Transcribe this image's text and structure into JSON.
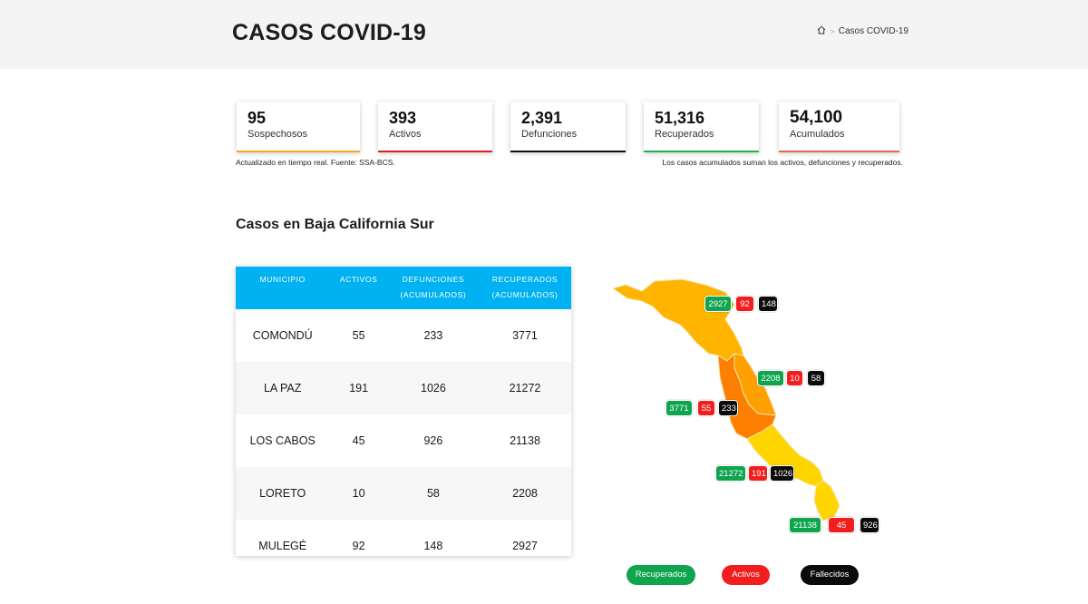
{
  "header": {
    "title": "CASOS COVID-19",
    "breadcrumb_home_icon": "home-icon",
    "breadcrumb_separator": ">",
    "breadcrumb_current": "Casos COVID-19"
  },
  "cards": [
    {
      "value": "95",
      "label": "Sospechosos",
      "color": "#f5a623"
    },
    {
      "value": "393",
      "label": "Activos",
      "color": "#e02020"
    },
    {
      "value": "2,391",
      "label": "Defunciones",
      "color": "#111111"
    },
    {
      "value": "51,316",
      "label": "Recuperados",
      "color": "#21b24b"
    },
    {
      "value": "54,100",
      "label": "Acumulados",
      "color": "#e8664a"
    }
  ],
  "notes": {
    "left": "Actualizado en tiempo real. Fuente: SSA-BCS.",
    "right": "Los casos acumulados suman los activos, defunciones y recuperados."
  },
  "section_title": "Casos en Baja California Sur",
  "table": {
    "header_color": "#00b2f2",
    "headers": [
      "MUNICIPIO",
      "ACTIVOS",
      "DEFUNCIONES (ACUMULADOS)",
      "RECUPERADOS (ACUMULADOS)"
    ],
    "rows": [
      [
        "COMONDÚ",
        "55",
        "233",
        "3771"
      ],
      [
        "LA PAZ",
        "191",
        "1026",
        "21272"
      ],
      [
        "LOS CABOS",
        "45",
        "926",
        "21138"
      ],
      [
        "LORETO",
        "10",
        "58",
        "2208"
      ],
      [
        "MULEGÉ",
        "92",
        "148",
        "2927"
      ]
    ]
  },
  "map": {
    "colors": {
      "mulege": "#ffb400",
      "loreto": "#ffa000",
      "comondu": "#ff7f00",
      "la_paz": "#ffd500",
      "los_cabos": "#ffd500"
    },
    "badges": [
      {
        "municipio": "MULEGÉ",
        "recuperados": "2927",
        "activos": "92",
        "fallecidos": "148"
      },
      {
        "municipio": "LORETO",
        "recuperados": "2208",
        "activos": "10",
        "fallecidos": "58"
      },
      {
        "municipio": "COMONDÚ",
        "recuperados": "3771",
        "activos": "55",
        "fallecidos": "233"
      },
      {
        "municipio": "LA PAZ",
        "recuperados": "21272",
        "activos": "191",
        "fallecidos": "1026"
      },
      {
        "municipio": "LOS CABOS",
        "recuperados": "21138",
        "activos": "45",
        "fallecidos": "926"
      }
    ]
  },
  "legend": [
    {
      "label": "Recuperados",
      "color": "#0fa44e"
    },
    {
      "label": "Activos",
      "color": "#f21d1d"
    },
    {
      "label": "Fallecidos",
      "color": "#0b0b0b"
    }
  ]
}
